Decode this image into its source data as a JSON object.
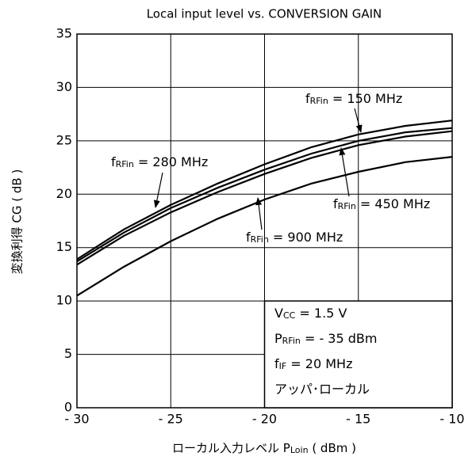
{
  "chart_data": {
    "type": "line",
    "title": "Local input level vs. CONVERSION GAIN",
    "y_label": "変換利得 CG ( dB )",
    "x_label_parts": [
      "ローカル入力レベル P",
      "Loin",
      " ( dBm )"
    ],
    "x": [
      -30,
      -27.5,
      -25,
      -22.5,
      -20,
      -17.5,
      -15,
      -12.5,
      -10
    ],
    "series": [
      {
        "name": "150 MHz",
        "label_parts": [
          "f",
          "RFin",
          " = 150 MHz"
        ],
        "color": "#000000",
        "values": [
          13.9,
          16.7,
          19.0,
          21.0,
          22.8,
          24.4,
          25.6,
          26.4,
          26.9
        ]
      },
      {
        "name": "280 MHz",
        "label_parts": [
          "f",
          "RFin",
          " = 280 MHz"
        ],
        "color": "#000000",
        "values": [
          13.7,
          16.4,
          18.7,
          20.6,
          22.3,
          23.8,
          25.0,
          25.8,
          26.2
        ]
      },
      {
        "name": "450 MHz",
        "label_parts": [
          "f",
          "RFin",
          " = 450 MHz"
        ],
        "color": "#000000",
        "values": [
          13.4,
          16.1,
          18.3,
          20.2,
          21.9,
          23.4,
          24.6,
          25.4,
          25.9
        ]
      },
      {
        "name": "900 MHz",
        "label_parts": [
          "f",
          "RFin",
          " = 900 MHz"
        ],
        "color": "#000000",
        "values": [
          10.5,
          13.2,
          15.6,
          17.7,
          19.5,
          21.0,
          22.1,
          23.0,
          23.5
        ]
      }
    ],
    "conditions": [
      [
        "V",
        "CC",
        " = 1.5 V"
      ],
      [
        "P",
        "RFin",
        " =  - 35 dBm"
      ],
      [
        "f",
        "IF",
        " = 20 MHz"
      ],
      [
        "アッパ･ローカル"
      ]
    ],
    "xlim": [
      -30,
      -10
    ],
    "xticks": [
      {
        "value": -30,
        "label": "- 30"
      },
      {
        "value": -25,
        "label": "- 25"
      },
      {
        "value": -20,
        "label": "- 20"
      },
      {
        "value": -15,
        "label": "- 15"
      },
      {
        "value": -10,
        "label": "- 10"
      }
    ],
    "ylim": [
      0,
      35
    ],
    "yticks": [
      0,
      5,
      10,
      15,
      20,
      25,
      30,
      35
    ],
    "grid": true
  }
}
